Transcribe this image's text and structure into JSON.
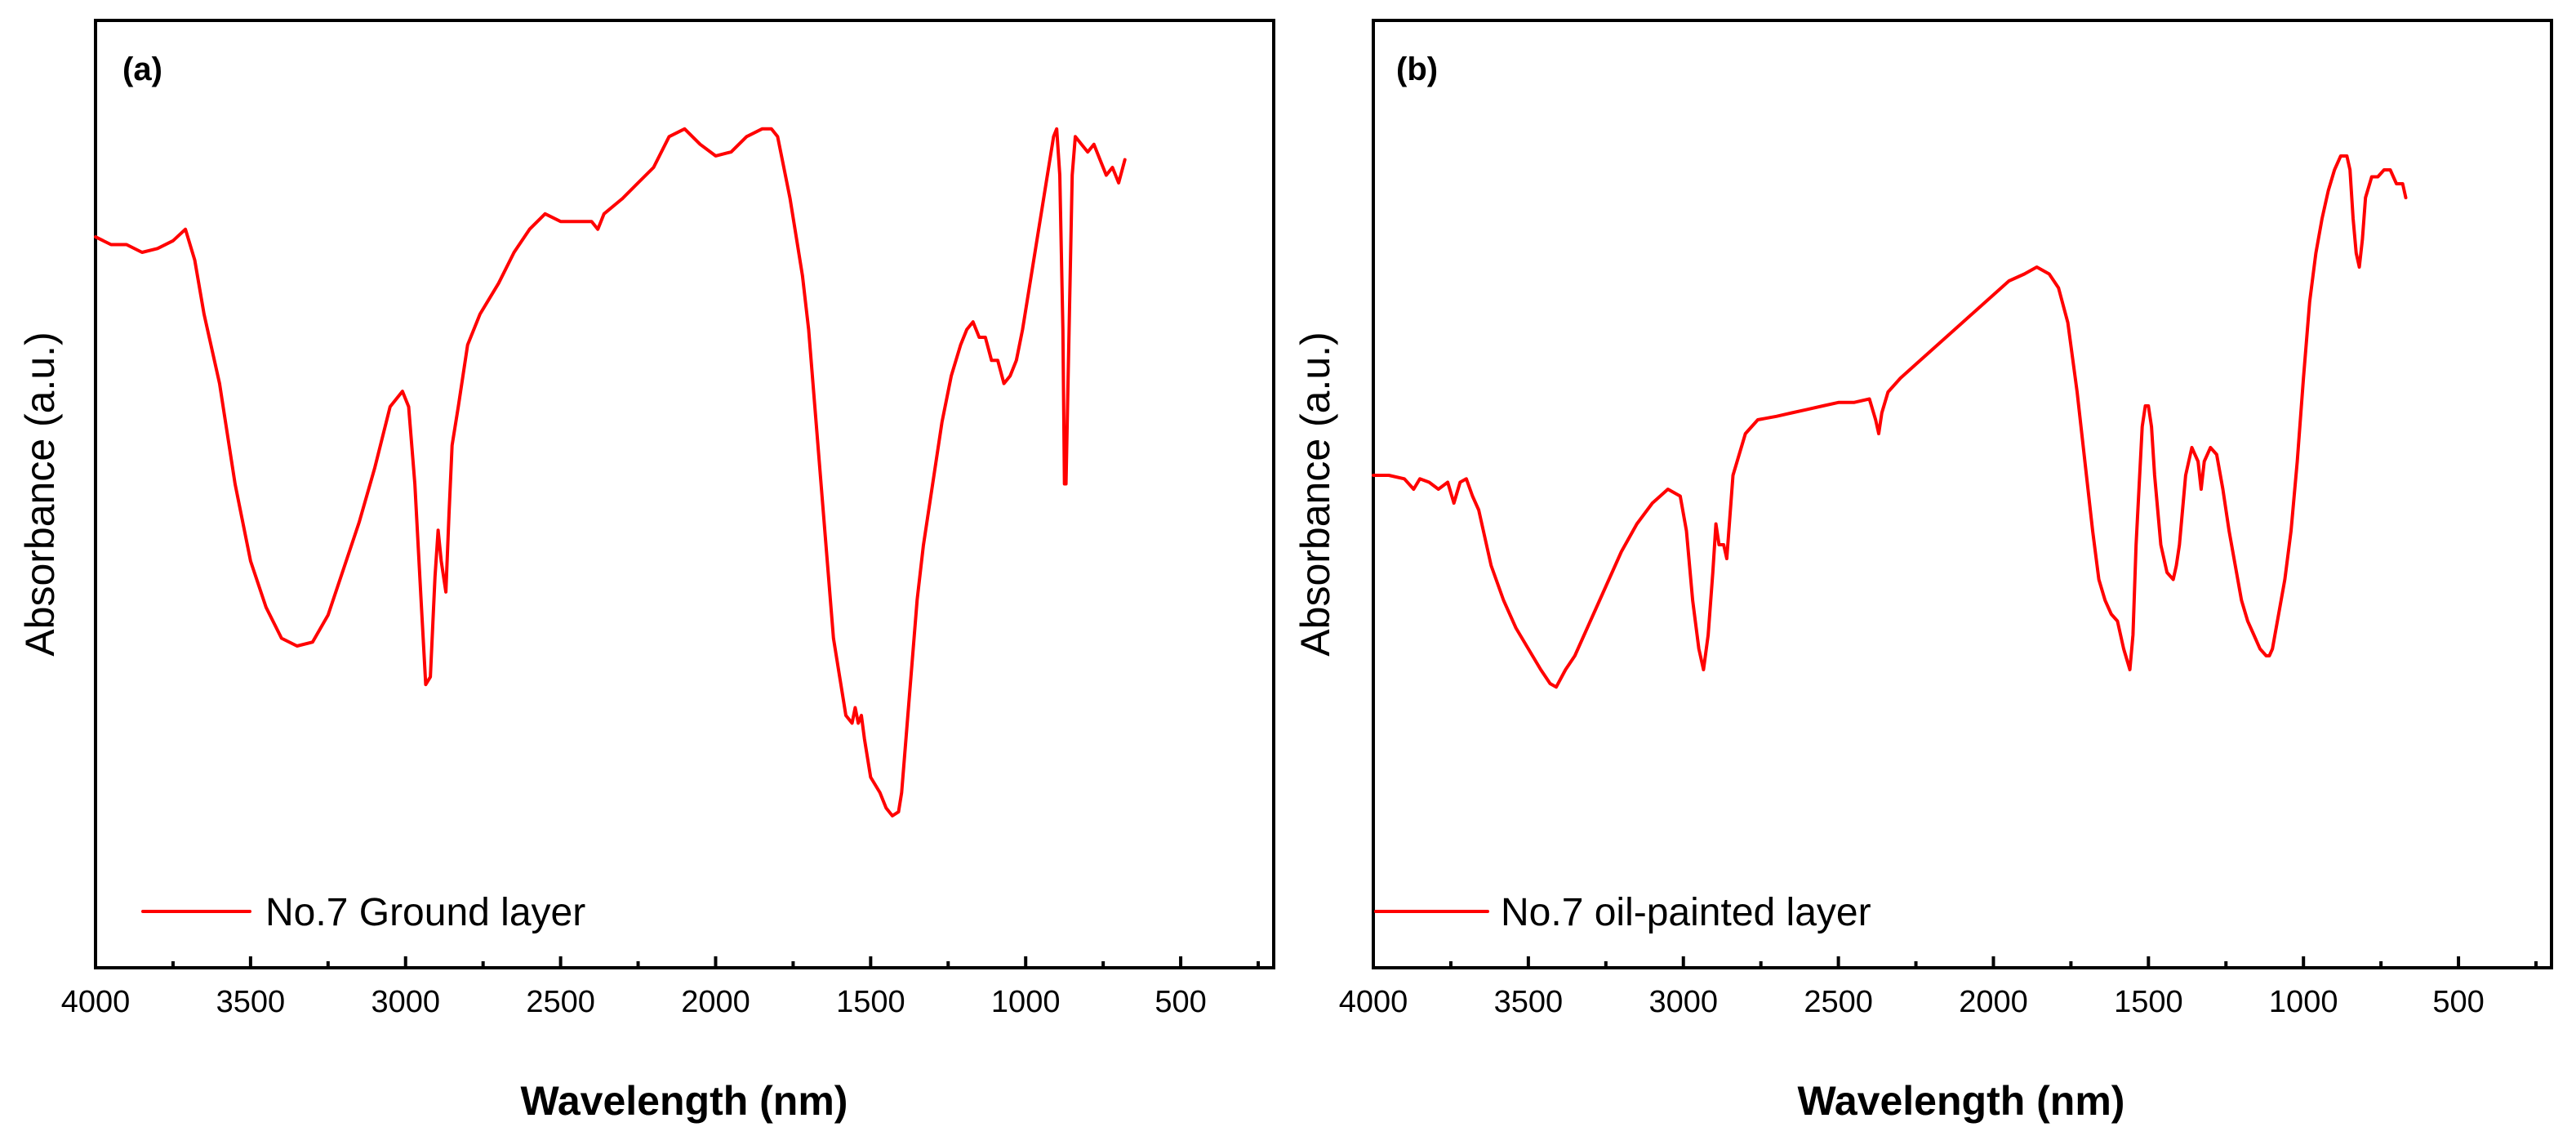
{
  "chart_data": [
    {
      "type": "line",
      "panel_label": "(a)",
      "xlabel": "Wavelength (nm)",
      "ylabel": "Absorbance (a.u.)",
      "xlim": [
        4000,
        200
      ],
      "ylim": [
        0,
        1
      ],
      "x_ticks": [
        4000,
        3500,
        3000,
        2500,
        2000,
        1500,
        1000,
        500
      ],
      "y_ticks_shown": false,
      "color": "#ff0000",
      "series": [
        {
          "name": "No.7 Ground layer",
          "x": [
            4000,
            3950,
            3900,
            3850,
            3800,
            3750,
            3710,
            3680,
            3650,
            3600,
            3550,
            3500,
            3450,
            3400,
            3350,
            3300,
            3250,
            3200,
            3150,
            3100,
            3050,
            3010,
            2990,
            2970,
            2950,
            2935,
            2920,
            2905,
            2895,
            2885,
            2870,
            2860,
            2850,
            2830,
            2800,
            2760,
            2700,
            2650,
            2600,
            2550,
            2500,
            2450,
            2400,
            2380,
            2360,
            2300,
            2250,
            2200,
            2150,
            2100,
            2050,
            2000,
            1950,
            1900,
            1850,
            1820,
            1800,
            1780,
            1760,
            1740,
            1720,
            1700,
            1680,
            1660,
            1640,
            1620,
            1600,
            1580,
            1560,
            1550,
            1540,
            1530,
            1520,
            1500,
            1470,
            1450,
            1430,
            1410,
            1400,
            1390,
            1370,
            1350,
            1330,
            1300,
            1270,
            1240,
            1210,
            1190,
            1170,
            1150,
            1130,
            1110,
            1090,
            1070,
            1050,
            1030,
            1010,
            990,
            970,
            950,
            930,
            910,
            900,
            890,
            880,
            875,
            870,
            860,
            850,
            840,
            820,
            800,
            780,
            760,
            740,
            720,
            700,
            680
          ],
          "y": [
            0.82,
            0.81,
            0.81,
            0.8,
            0.805,
            0.815,
            0.83,
            0.79,
            0.72,
            0.63,
            0.5,
            0.4,
            0.34,
            0.3,
            0.29,
            0.295,
            0.33,
            0.39,
            0.45,
            0.52,
            0.6,
            0.62,
            0.6,
            0.5,
            0.35,
            0.24,
            0.25,
            0.38,
            0.44,
            0.4,
            0.36,
            0.46,
            0.55,
            0.6,
            0.68,
            0.72,
            0.76,
            0.8,
            0.83,
            0.85,
            0.84,
            0.84,
            0.84,
            0.83,
            0.85,
            0.87,
            0.89,
            0.91,
            0.95,
            0.96,
            0.94,
            0.925,
            0.93,
            0.95,
            0.96,
            0.96,
            0.95,
            0.91,
            0.87,
            0.82,
            0.77,
            0.7,
            0.6,
            0.5,
            0.4,
            0.3,
            0.25,
            0.2,
            0.19,
            0.21,
            0.19,
            0.2,
            0.17,
            0.12,
            0.1,
            0.08,
            0.07,
            0.075,
            0.1,
            0.15,
            0.25,
            0.35,
            0.42,
            0.5,
            0.58,
            0.64,
            0.68,
            0.7,
            0.71,
            0.69,
            0.69,
            0.66,
            0.66,
            0.63,
            0.64,
            0.66,
            0.7,
            0.75,
            0.8,
            0.85,
            0.9,
            0.95,
            0.96,
            0.9,
            0.7,
            0.5,
            0.5,
            0.7,
            0.9,
            0.95,
            0.94,
            0.93,
            0.94,
            0.92,
            0.9,
            0.91,
            0.89,
            0.92
          ]
        }
      ]
    },
    {
      "type": "line",
      "panel_label": "(b)",
      "xlabel": "Wavelength (nm)",
      "ylabel": "Absorbance (a.u.)",
      "xlim": [
        4000,
        200
      ],
      "ylim": [
        0,
        1
      ],
      "x_ticks": [
        4000,
        3500,
        3000,
        2500,
        2000,
        1500,
        1000,
        500
      ],
      "y_ticks_shown": false,
      "color": "#ff0000",
      "series": [
        {
          "name": "No.7 oil-painted layer",
          "x": [
            4000,
            3950,
            3900,
            3870,
            3850,
            3820,
            3790,
            3760,
            3740,
            3720,
            3700,
            3680,
            3660,
            3640,
            3620,
            3580,
            3540,
            3500,
            3460,
            3430,
            3410,
            3380,
            3350,
            3300,
            3250,
            3200,
            3150,
            3100,
            3050,
            3010,
            2990,
            2970,
            2950,
            2935,
            2920,
            2905,
            2895,
            2885,
            2870,
            2860,
            2840,
            2800,
            2760,
            2700,
            2650,
            2600,
            2550,
            2500,
            2450,
            2400,
            2380,
            2370,
            2360,
            2340,
            2300,
            2250,
            2200,
            2150,
            2100,
            2050,
            2000,
            1950,
            1900,
            1860,
            1840,
            1820,
            1790,
            1760,
            1730,
            1700,
            1680,
            1660,
            1640,
            1620,
            1600,
            1580,
            1560,
            1550,
            1540,
            1520,
            1510,
            1500,
            1490,
            1480,
            1460,
            1440,
            1420,
            1410,
            1400,
            1380,
            1360,
            1340,
            1330,
            1320,
            1300,
            1280,
            1260,
            1240,
            1220,
            1200,
            1180,
            1160,
            1140,
            1120,
            1110,
            1100,
            1080,
            1060,
            1040,
            1020,
            1000,
            980,
            960,
            940,
            920,
            900,
            880,
            860,
            850,
            840,
            830,
            820,
            810,
            800,
            780,
            760,
            740,
            720,
            700,
            680,
            670
          ],
          "y": [
            0.48,
            0.48,
            0.475,
            0.46,
            0.475,
            0.47,
            0.46,
            0.47,
            0.44,
            0.47,
            0.475,
            0.45,
            0.43,
            0.39,
            0.35,
            0.3,
            0.26,
            0.23,
            0.2,
            0.18,
            0.175,
            0.2,
            0.22,
            0.27,
            0.32,
            0.37,
            0.41,
            0.44,
            0.46,
            0.45,
            0.4,
            0.3,
            0.23,
            0.2,
            0.25,
            0.34,
            0.41,
            0.38,
            0.38,
            0.36,
            0.48,
            0.54,
            0.56,
            0.565,
            0.57,
            0.575,
            0.58,
            0.585,
            0.585,
            0.59,
            0.56,
            0.54,
            0.57,
            0.6,
            0.62,
            0.64,
            0.66,
            0.68,
            0.7,
            0.72,
            0.74,
            0.76,
            0.77,
            0.78,
            0.775,
            0.77,
            0.75,
            0.7,
            0.6,
            0.48,
            0.4,
            0.33,
            0.3,
            0.28,
            0.27,
            0.23,
            0.2,
            0.25,
            0.38,
            0.55,
            0.58,
            0.58,
            0.55,
            0.48,
            0.38,
            0.34,
            0.33,
            0.35,
            0.38,
            0.48,
            0.52,
            0.5,
            0.46,
            0.5,
            0.52,
            0.51,
            0.46,
            0.4,
            0.35,
            0.3,
            0.27,
            0.25,
            0.23,
            0.22,
            0.22,
            0.23,
            0.28,
            0.33,
            0.4,
            0.5,
            0.62,
            0.73,
            0.8,
            0.85,
            0.89,
            0.92,
            0.94,
            0.94,
            0.92,
            0.85,
            0.8,
            0.78,
            0.82,
            0.88,
            0.91,
            0.91,
            0.92,
            0.92,
            0.9,
            0.9,
            0.88
          ]
        }
      ]
    }
  ]
}
